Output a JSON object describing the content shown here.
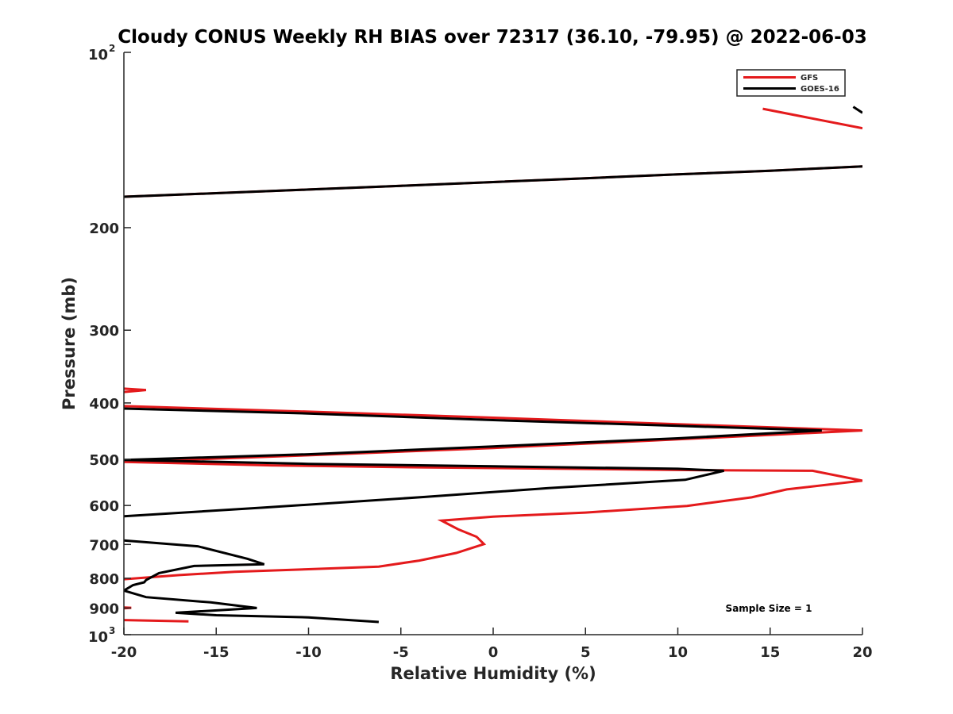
{
  "chart_data": {
    "type": "line",
    "title": "Cloudy CONUS Weekly RH BIAS over 72317 (36.10, -79.95) @ 2022-06-03",
    "xlabel": "Relative Humidity (%)",
    "ylabel": "Pressure (mb)",
    "xlim": [
      -20,
      20
    ],
    "ylim": [
      100,
      1000
    ],
    "yscale": "log",
    "yreversed": true,
    "grid": false,
    "x_ticks": [
      "-20",
      "-15",
      "-10",
      "-5",
      "0",
      "5",
      "10",
      "15",
      "20"
    ],
    "x_tick_values": [
      -20,
      -15,
      -10,
      -5,
      0,
      5,
      10,
      15,
      20
    ],
    "y_ticks": [
      {
        "value": 100,
        "base": "10",
        "exp": "2"
      },
      {
        "value": 200,
        "label": "200"
      },
      {
        "value": 300,
        "label": "300"
      },
      {
        "value": 400,
        "label": "400"
      },
      {
        "value": 500,
        "label": "500"
      },
      {
        "value": 600,
        "label": "600"
      },
      {
        "value": 700,
        "label": "700"
      },
      {
        "value": 800,
        "label": "800"
      },
      {
        "value": 900,
        "label": "900"
      },
      {
        "value": 1000,
        "base": "10",
        "exp": "3"
      }
    ],
    "legend": {
      "placement": "top-right"
    },
    "annotation": "Sample Size = 1",
    "series": [
      {
        "name": "GFS",
        "color": "#e41a1c",
        "segments": [
          [
            [
              14.6,
              125
            ],
            [
              20,
              135
            ]
          ],
          [
            [
              -20,
              177
            ],
            [
              -15,
              174.5
            ],
            [
              -10,
              172
            ],
            [
              -5,
              169.5
            ],
            [
              0,
              167
            ],
            [
              5,
              164.5
            ],
            [
              10,
              162
            ],
            [
              15,
              159.7
            ],
            [
              20,
              157
            ]
          ],
          [
            [
              -20,
              378
            ],
            [
              -18.8,
              380
            ],
            [
              -20,
              383
            ]
          ],
          [
            [
              -20,
              405
            ],
            [
              -10,
              414
            ],
            [
              0,
              424
            ],
            [
              10,
              435
            ],
            [
              20,
              446
            ],
            [
              10,
              462
            ],
            [
              0,
              478
            ],
            [
              -10,
              492
            ],
            [
              -20,
              505
            ],
            [
              -12,
              512
            ],
            [
              -4,
              516
            ],
            [
              4,
              519
            ],
            [
              12,
              522
            ],
            [
              17.3,
              523
            ],
            [
              20,
              544
            ],
            [
              15.9,
              563
            ],
            [
              14,
              581
            ],
            [
              10.5,
              601
            ],
            [
              5,
              617
            ],
            [
              0,
              627
            ],
            [
              -2.8,
              637
            ],
            [
              -1.9,
              659
            ],
            [
              -0.9,
              679
            ],
            [
              -0.5,
              699
            ],
            [
              -2,
              724
            ],
            [
              -4,
              746
            ],
            [
              -6.2,
              764
            ],
            [
              -10,
              772
            ],
            [
              -14,
              780
            ],
            [
              -17,
              790
            ],
            [
              -20,
              803
            ]
          ],
          [
            [
              -20,
              898
            ],
            [
              -19.6,
              899
            ],
            [
              -20,
              901
            ]
          ],
          [
            [
              -20,
              944
            ],
            [
              -16.5,
              949
            ]
          ]
        ]
      },
      {
        "name": "GOES-16",
        "color": "#000000",
        "segments": [
          [
            [
              19.5,
              124
            ],
            [
              20,
              127
            ]
          ],
          [
            [
              -20,
              177
            ],
            [
              -15,
              174.5
            ],
            [
              -10,
              172
            ],
            [
              -5,
              169.5
            ],
            [
              0,
              167
            ],
            [
              5,
              164.5
            ],
            [
              10,
              162
            ],
            [
              15,
              159.7
            ],
            [
              20,
              157
            ]
          ],
          [
            [
              -20,
              409
            ],
            [
              -10,
              417
            ],
            [
              0,
              428
            ],
            [
              10,
              438
            ],
            [
              17.8,
              446
            ],
            [
              10,
              460
            ],
            [
              0,
              475
            ],
            [
              -10,
              490
            ],
            [
              -20,
              501
            ],
            [
              -10,
              509
            ],
            [
              0,
              514
            ],
            [
              10,
              519
            ],
            [
              12.5,
              523
            ],
            [
              11.5,
              532
            ],
            [
              10.4,
              542
            ],
            [
              3,
              560
            ],
            [
              -3.7,
              580
            ],
            [
              -12.4,
              605
            ],
            [
              -20,
              626
            ]
          ],
          [
            [
              -20,
              689
            ],
            [
              -16,
              705
            ],
            [
              -13.3,
              741
            ],
            [
              -12.4,
              757
            ],
            [
              -16.2,
              762
            ],
            [
              -18.1,
              784
            ],
            [
              -18.8,
              806
            ],
            [
              -18.9,
              813
            ],
            [
              -19.5,
              822
            ],
            [
              -20,
              840
            ],
            [
              -18.8,
              862
            ],
            [
              -15.3,
              880
            ],
            [
              -12.8,
              900
            ],
            [
              -17.2,
              917
            ],
            [
              -15,
              926
            ],
            [
              -10,
              934
            ],
            [
              -6.2,
              951
            ]
          ]
        ]
      }
    ]
  }
}
